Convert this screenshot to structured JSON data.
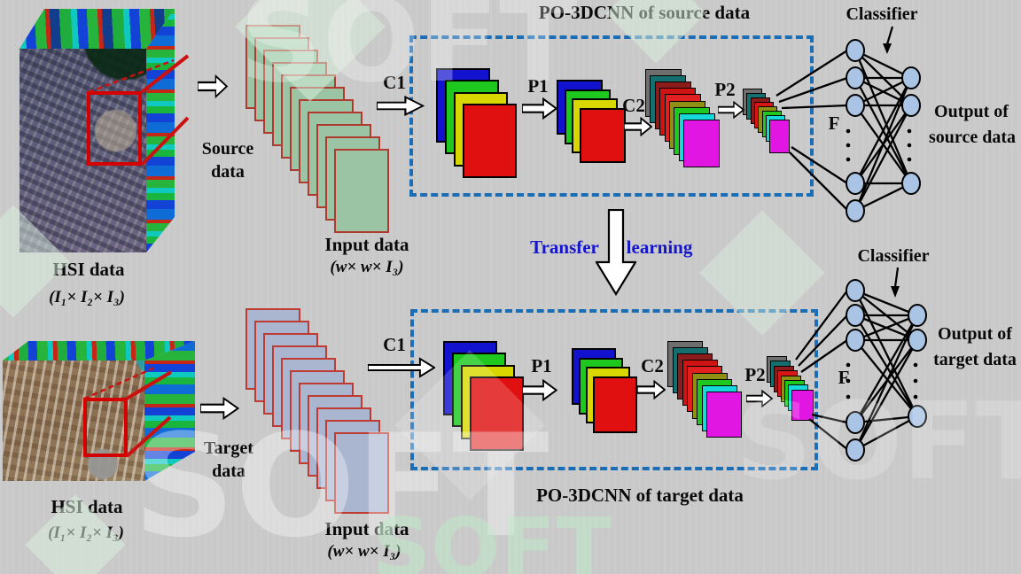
{
  "colors": {
    "background": "#c9c9c9",
    "box_border": "#1b6db5",
    "transfer_text": "#1515cc",
    "node_fill": "#a9c4e4",
    "roi": "#d40000"
  },
  "source_row": {
    "hsi_label": "HSI data",
    "hsi_dims": "(I₁× I₂× I₃)",
    "flow_label_1": "Source",
    "flow_label_2": "data",
    "input_label": "Input data",
    "input_dims": "(w× w× I₃)",
    "c1": "C1",
    "p1": "P1",
    "c2": "C2",
    "p2": "P2",
    "f": "F",
    "box_title": "PO-3DCNN of source data",
    "classifier": "Classifier",
    "output_1": "Output of",
    "output_2": "source data"
  },
  "target_row": {
    "hsi_label": "HSI data",
    "hsi_dims": "(I₁× I₂× I₃)",
    "flow_label_1": "Target",
    "flow_label_2": "data",
    "input_label": "Input data",
    "input_dims": "(w× w× I₃)",
    "c1": "C1",
    "p1": "P1",
    "c2": "C2",
    "p2": "P2",
    "f": "F",
    "box_title": "PO-3DCNN of target data",
    "classifier": "Classifier",
    "output_1": "Output of",
    "output_2": "target data"
  },
  "transfer": {
    "left": "Transfer",
    "right": "learning"
  },
  "watermark": {
    "text": "SOFT"
  },
  "stacks": {
    "source_input": {
      "count": 11,
      "fill": "#9ac4a4",
      "border": "#b03a30"
    },
    "target_input": {
      "count": 11,
      "fill": "#aab6cf",
      "border": "#bf3a30"
    },
    "conv_large": {
      "colors": [
        "#1212cf",
        "#1ec81e",
        "#d8d800",
        "#e01010"
      ],
      "border": "#000000"
    },
    "conv_small": {
      "colors": [
        "#1212cf",
        "#1ec81e",
        "#d8d800",
        "#e01010"
      ],
      "border": "#000000"
    },
    "c2_stack": {
      "colors": [
        "#6e6e6e",
        "#156f6f",
        "#8c1c1c",
        "#cf1212",
        "#e22020",
        "#8f8f16",
        "#1ec81e",
        "#16dada",
        "#e216e2"
      ],
      "border": "#000000"
    },
    "p2_stack": {
      "colors": [
        "#6e6e6e",
        "#156f6f",
        "#8c1c1c",
        "#d81616",
        "#8f8f16",
        "#1ec81e",
        "#16dada",
        "#e216e2"
      ],
      "border": "#000000"
    }
  }
}
